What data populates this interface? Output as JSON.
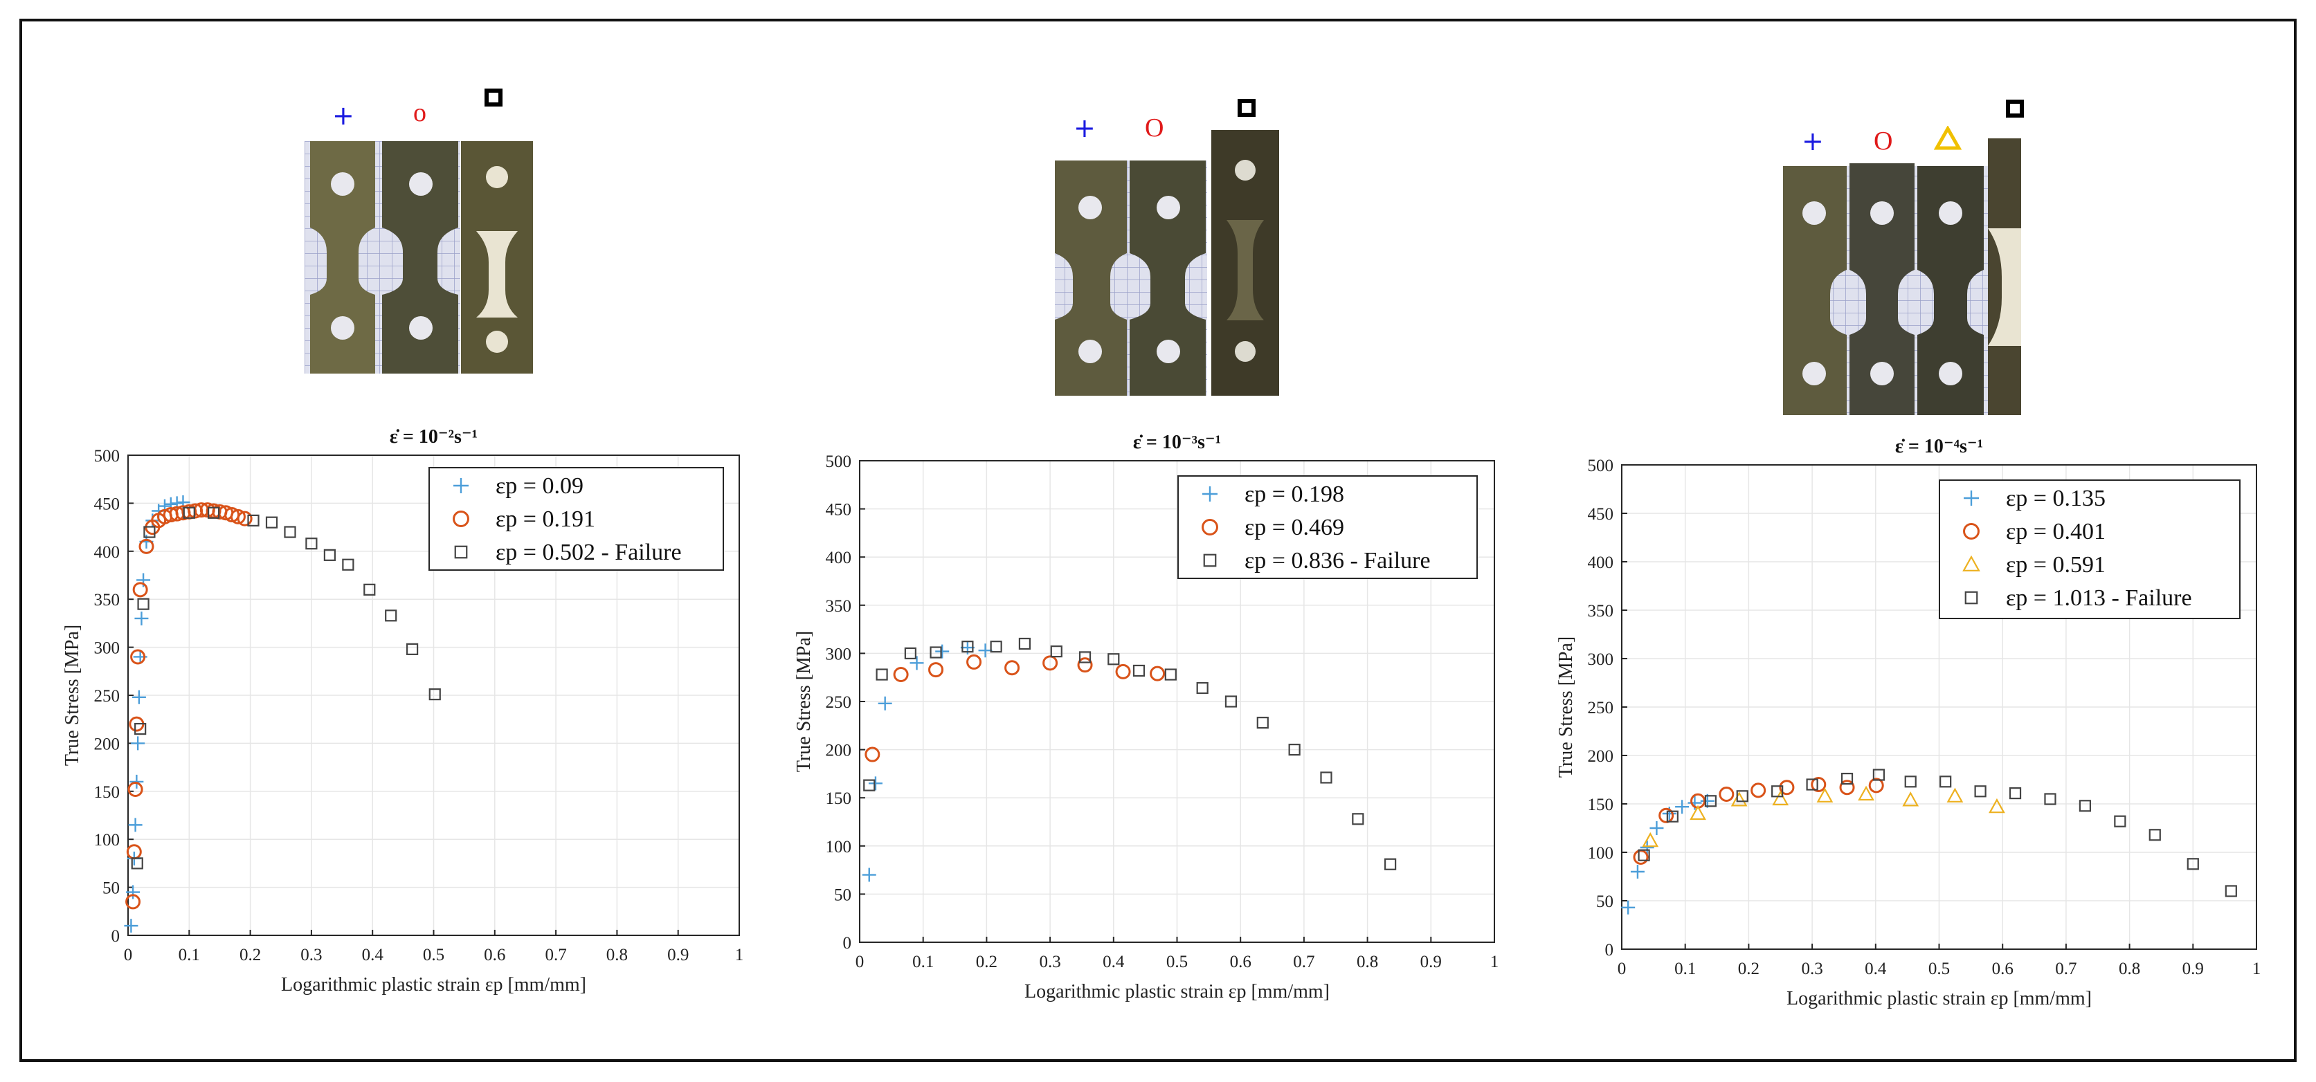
{
  "chart_data": [
    {
      "type": "scatter",
      "title": "ε̇ = 10⁻²s⁻¹",
      "xlabel": "Logarithmic plastic strain εp [mm/mm]",
      "ylabel": "True Stress [MPa]",
      "xlim": [
        0,
        1
      ],
      "ylim": [
        0,
        500
      ],
      "xticks": [
        0,
        0.1,
        0.2,
        0.3,
        0.4,
        0.5,
        0.6,
        0.7,
        0.8,
        0.9,
        1
      ],
      "yticks": [
        0,
        50,
        100,
        150,
        200,
        250,
        300,
        350,
        400,
        450,
        500
      ],
      "grid": true,
      "legend_position": "top-right",
      "specimen_markers": [
        "+",
        "o",
        "□"
      ],
      "series": [
        {
          "name": "εp = 0.09",
          "marker": "plus",
          "color": "#4c9ed9",
          "x": [
            0.005,
            0.008,
            0.01,
            0.012,
            0.014,
            0.016,
            0.018,
            0.02,
            0.022,
            0.025,
            0.03,
            0.04,
            0.05,
            0.06,
            0.07,
            0.08,
            0.09
          ],
          "y": [
            10,
            45,
            80,
            115,
            160,
            200,
            248,
            290,
            330,
            370,
            410,
            432,
            442,
            447,
            449,
            450,
            451
          ]
        },
        {
          "name": "εp = 0.191",
          "marker": "circle",
          "color": "#d95319",
          "x": [
            0.008,
            0.01,
            0.012,
            0.014,
            0.016,
            0.02,
            0.03,
            0.04,
            0.05,
            0.06,
            0.07,
            0.08,
            0.09,
            0.1,
            0.11,
            0.12,
            0.13,
            0.14,
            0.15,
            0.16,
            0.17,
            0.18,
            0.191
          ],
          "y": [
            35,
            87,
            152,
            220,
            290,
            360,
            405,
            425,
            432,
            436,
            438,
            439,
            440,
            441,
            442,
            443,
            443,
            442,
            441,
            440,
            438,
            436,
            434
          ]
        },
        {
          "name": "εp = 0.502 - Failure",
          "marker": "square",
          "color": "#444444",
          "x": [
            0.015,
            0.02,
            0.025,
            0.035,
            0.1,
            0.14,
            0.205,
            0.235,
            0.265,
            0.3,
            0.33,
            0.36,
            0.395,
            0.43,
            0.465,
            0.502
          ],
          "y": [
            75,
            215,
            345,
            420,
            440,
            440,
            432,
            430,
            420,
            408,
            396,
            386,
            360,
            333,
            298,
            251
          ]
        }
      ]
    },
    {
      "type": "scatter",
      "title": "ε̇ = 10⁻³s⁻¹",
      "xlabel": "Logarithmic plastic strain εp [mm/mm]",
      "ylabel": "True Stress [MPa]",
      "xlim": [
        0,
        1
      ],
      "ylim": [
        0,
        500
      ],
      "xticks": [
        0,
        0.1,
        0.2,
        0.3,
        0.4,
        0.5,
        0.6,
        0.7,
        0.8,
        0.9,
        1
      ],
      "yticks": [
        0,
        50,
        100,
        150,
        200,
        250,
        300,
        350,
        400,
        450,
        500
      ],
      "grid": true,
      "legend_position": "top-right",
      "specimen_markers": [
        "+",
        "O",
        "□"
      ],
      "series": [
        {
          "name": "εp = 0.198",
          "marker": "plus",
          "color": "#4c9ed9",
          "x": [
            0.015,
            0.025,
            0.04,
            0.09,
            0.13,
            0.17,
            0.198
          ],
          "y": [
            70,
            165,
            248,
            290,
            302,
            306,
            303
          ]
        },
        {
          "name": "εp = 0.469",
          "marker": "circle",
          "color": "#d95319",
          "x": [
            0.02,
            0.065,
            0.12,
            0.18,
            0.24,
            0.3,
            0.355,
            0.415,
            0.469
          ],
          "y": [
            195,
            278,
            283,
            291,
            285,
            290,
            288,
            281,
            279
          ]
        },
        {
          "name": "εp = 0.836 - Failure",
          "marker": "square",
          "color": "#444444",
          "x": [
            0.015,
            0.035,
            0.08,
            0.12,
            0.17,
            0.215,
            0.26,
            0.31,
            0.355,
            0.4,
            0.44,
            0.49,
            0.54,
            0.585,
            0.635,
            0.685,
            0.735,
            0.785,
            0.836
          ],
          "y": [
            163,
            278,
            300,
            301,
            307,
            307,
            310,
            302,
            296,
            294,
            282,
            278,
            264,
            250,
            228,
            200,
            171,
            128,
            81
          ]
        }
      ]
    },
    {
      "type": "scatter",
      "title": "ε̇ = 10⁻⁴s⁻¹",
      "xlabel": "Logarithmic plastic strain εp [mm/mm]",
      "ylabel": "True Stress [MPa]",
      "xlim": [
        0,
        1
      ],
      "ylim": [
        0,
        500
      ],
      "xticks": [
        0,
        0.1,
        0.2,
        0.3,
        0.4,
        0.5,
        0.6,
        0.7,
        0.8,
        0.9,
        1
      ],
      "yticks": [
        0,
        50,
        100,
        150,
        200,
        250,
        300,
        350,
        400,
        450,
        500
      ],
      "grid": true,
      "legend_position": "top-right",
      "specimen_markers": [
        "+",
        "O",
        "△",
        "□"
      ],
      "series": [
        {
          "name": "εp = 0.135",
          "marker": "plus",
          "color": "#4c9ed9",
          "x": [
            0.01,
            0.025,
            0.04,
            0.055,
            0.075,
            0.095,
            0.115,
            0.135
          ],
          "y": [
            43,
            80,
            105,
            125,
            140,
            147,
            151,
            153
          ]
        },
        {
          "name": "εp = 0.401",
          "marker": "circle",
          "color": "#d95319",
          "x": [
            0.03,
            0.07,
            0.12,
            0.165,
            0.215,
            0.26,
            0.31,
            0.355,
            0.401
          ],
          "y": [
            95,
            138,
            153,
            160,
            164,
            167,
            170,
            167,
            169
          ]
        },
        {
          "name": "εp = 0.591",
          "marker": "triangle",
          "color": "#edb120",
          "x": [
            0.045,
            0.12,
            0.185,
            0.25,
            0.32,
            0.385,
            0.455,
            0.525,
            0.591
          ],
          "y": [
            112,
            140,
            154,
            155,
            158,
            160,
            154,
            158,
            147
          ]
        },
        {
          "name": "εp = 1.013 - Failure",
          "marker": "square",
          "color": "#444444",
          "x": [
            0.035,
            0.08,
            0.14,
            0.19,
            0.245,
            0.3,
            0.355,
            0.405,
            0.455,
            0.51,
            0.565,
            0.62,
            0.675,
            0.73,
            0.785,
            0.84,
            0.9,
            0.96
          ],
          "y": [
            97,
            137,
            153,
            158,
            163,
            170,
            176,
            180,
            173,
            173,
            163,
            161,
            155,
            148,
            132,
            118,
            88,
            60
          ]
        }
      ]
    }
  ]
}
